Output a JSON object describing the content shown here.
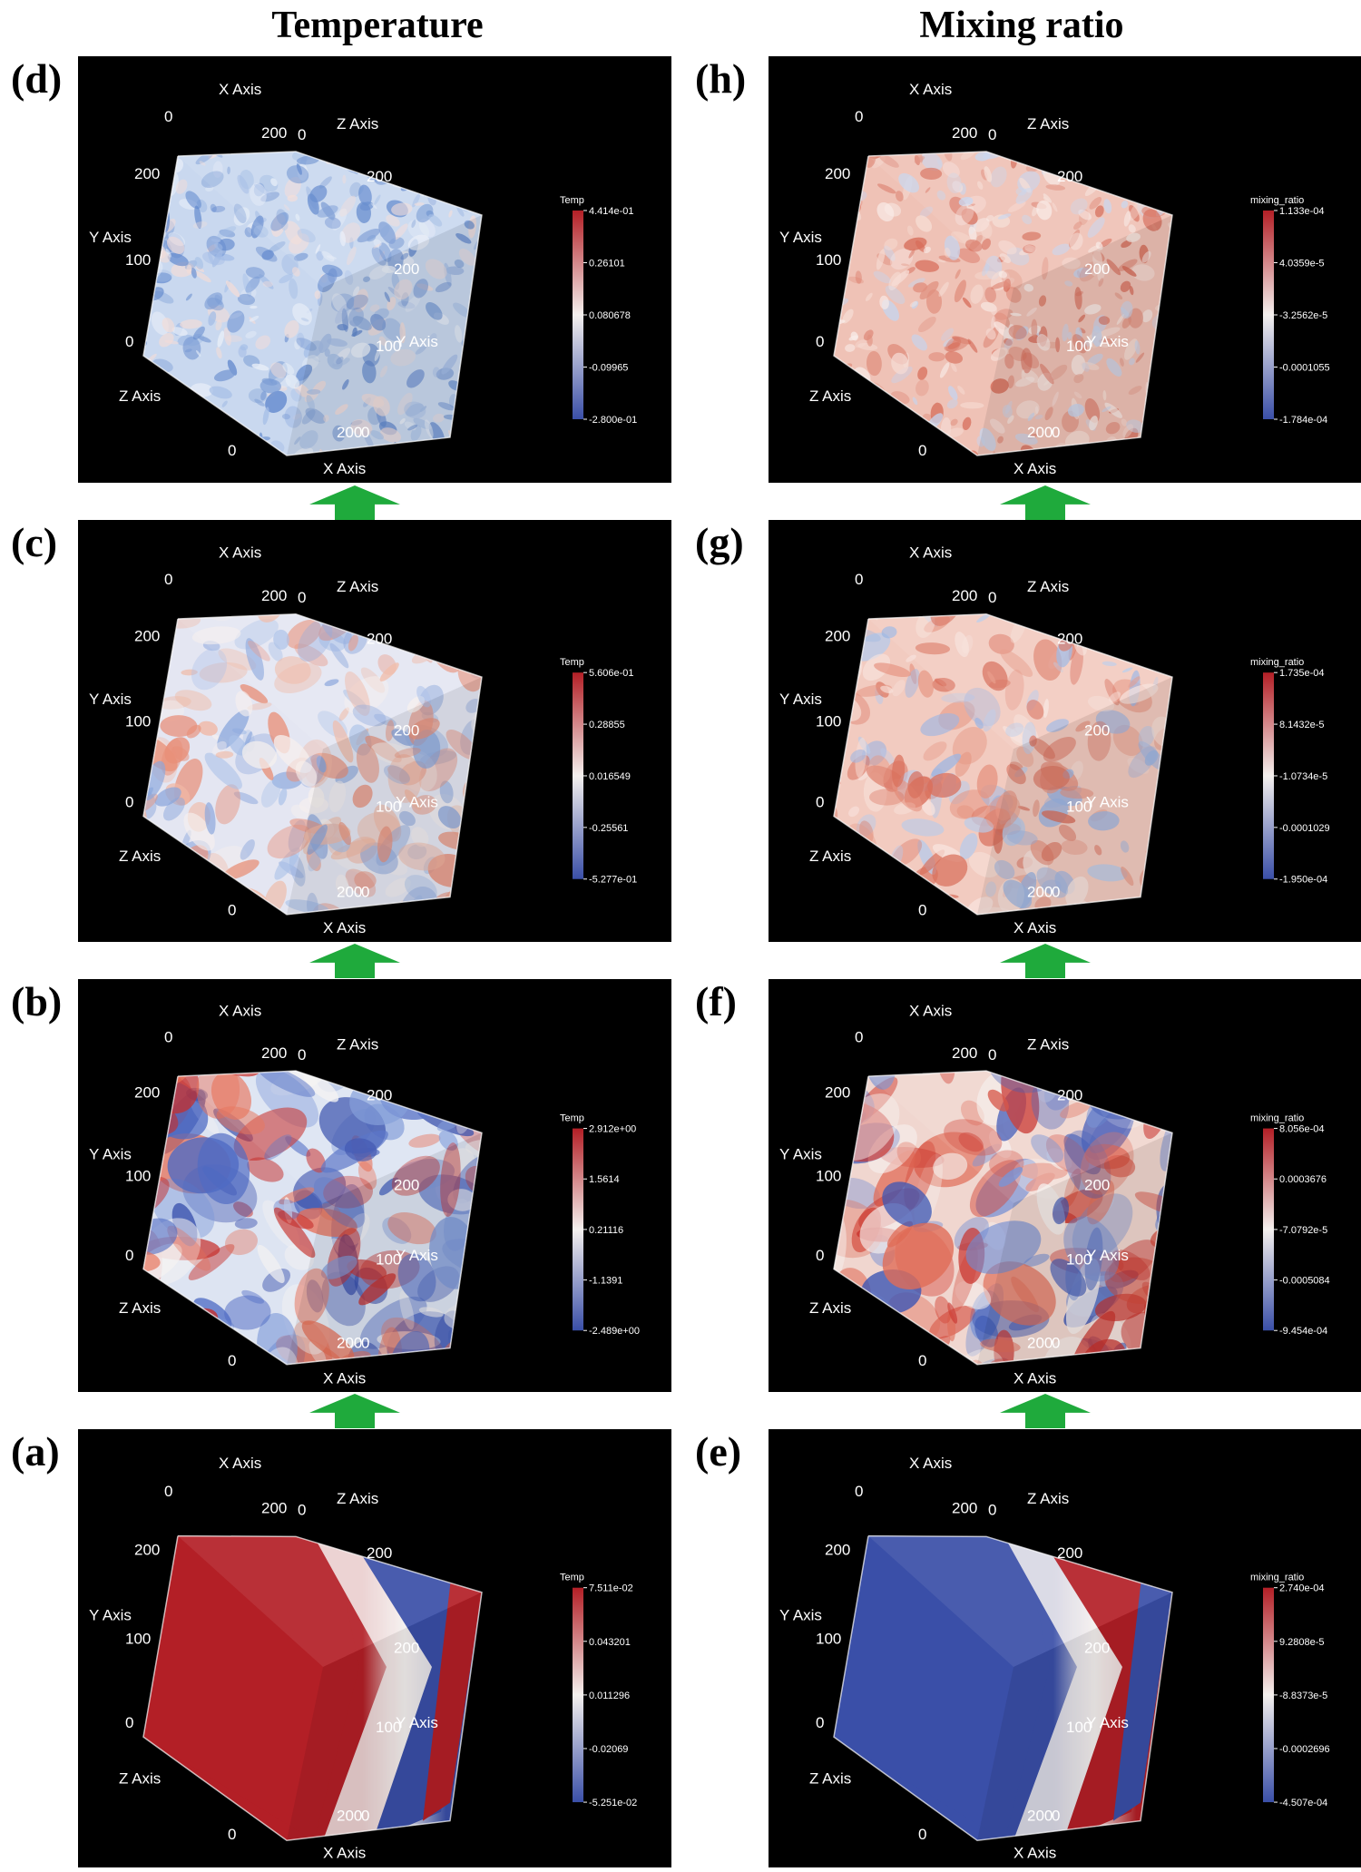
{
  "columns": [
    {
      "title": "Temperature"
    },
    {
      "title": "Mixing ratio"
    }
  ],
  "axis_text": {
    "x": "X Axis",
    "y": "Y Axis",
    "z": "Z Axis",
    "t0": "0",
    "t100": "100",
    "t200": "200"
  },
  "colors": {
    "red": "#b31f26",
    "blue": "#3a4fa8",
    "white": "#f4f0ee",
    "arrow": "#1faa3c"
  },
  "panels": [
    {
      "id": "d",
      "letter": "(d)",
      "col": 0,
      "row": 0,
      "pattern": "fine-blue",
      "cb_title": "Temp",
      "cb_labels": [
        "4.414e-01",
        "0.26101",
        "0.080678",
        "-0.09965",
        "-2.800e-01"
      ]
    },
    {
      "id": "c",
      "letter": "(c)",
      "col": 0,
      "row": 1,
      "pattern": "medium-mixed",
      "cb_title": "Temp",
      "cb_labels": [
        "5.606e-01",
        "0.28855",
        "0.016549",
        "-0.25561",
        "-5.277e-01"
      ]
    },
    {
      "id": "b",
      "letter": "(b)",
      "col": 0,
      "row": 2,
      "pattern": "coarse-mixed",
      "cb_title": "Temp",
      "cb_labels": [
        "2.912e+00",
        "1.5614",
        "0.21116",
        "-1.1391",
        "-2.489e+00"
      ]
    },
    {
      "id": "a",
      "letter": "(a)",
      "col": 0,
      "row": 3,
      "pattern": "bands-temp",
      "cb_title": "Temp",
      "cb_labels": [
        "7.511e-02",
        "0.043201",
        "0.011296",
        "-0.02069",
        "-5.251e-02"
      ]
    },
    {
      "id": "h",
      "letter": "(h)",
      "col": 1,
      "row": 0,
      "pattern": "fine-red",
      "cb_title": "mixing_ratio",
      "cb_labels": [
        "1.133e-04",
        "4.0359e-5",
        "-3.2562e-5",
        "-0.0001055",
        "-1.784e-04"
      ]
    },
    {
      "id": "g",
      "letter": "(g)",
      "col": 1,
      "row": 1,
      "pattern": "medium-red",
      "cb_title": "mixing_ratio",
      "cb_labels": [
        "1.735e-04",
        "8.1432e-5",
        "-1.0734e-5",
        "-0.0001029",
        "-1.950e-04"
      ]
    },
    {
      "id": "f",
      "letter": "(f)",
      "col": 1,
      "row": 2,
      "pattern": "coarse-red",
      "cb_title": "mixing_ratio",
      "cb_labels": [
        "8.056e-04",
        "0.0003676",
        "-7.0792e-5",
        "-0.0005084",
        "-9.454e-04"
      ]
    },
    {
      "id": "e",
      "letter": "(e)",
      "col": 1,
      "row": 3,
      "pattern": "bands-mix",
      "cb_title": "mixing_ratio",
      "cb_labels": [
        "2.740e-04",
        "9.2808e-5",
        "-8.8373e-5",
        "-0.0002696",
        "-4.507e-04"
      ]
    }
  ]
}
